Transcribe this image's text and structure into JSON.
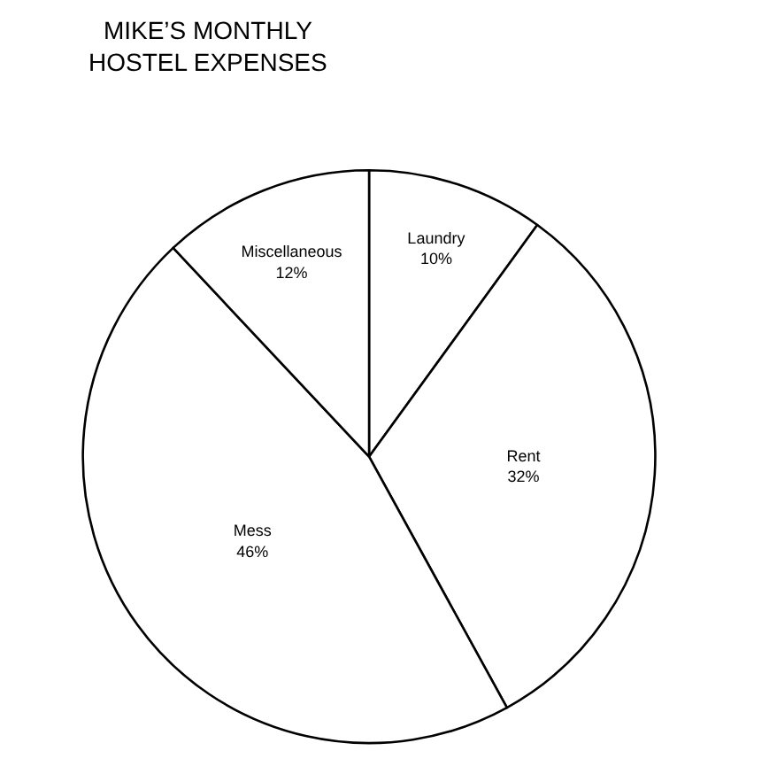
{
  "chart_data": {
    "type": "pie",
    "title": "MIKE’S MONTHLY\nHOSTEL EXPENSES",
    "categories": [
      "Laundry",
      "Rent",
      "Mess",
      "Miscellaneous"
    ],
    "values": [
      10,
      32,
      46,
      12
    ],
    "value_labels": [
      "10%",
      "32%",
      "46%",
      "12%"
    ],
    "colors": [
      "#ffffff",
      "#ffffff",
      "#ffffff",
      "#ffffff"
    ],
    "legend": false
  }
}
